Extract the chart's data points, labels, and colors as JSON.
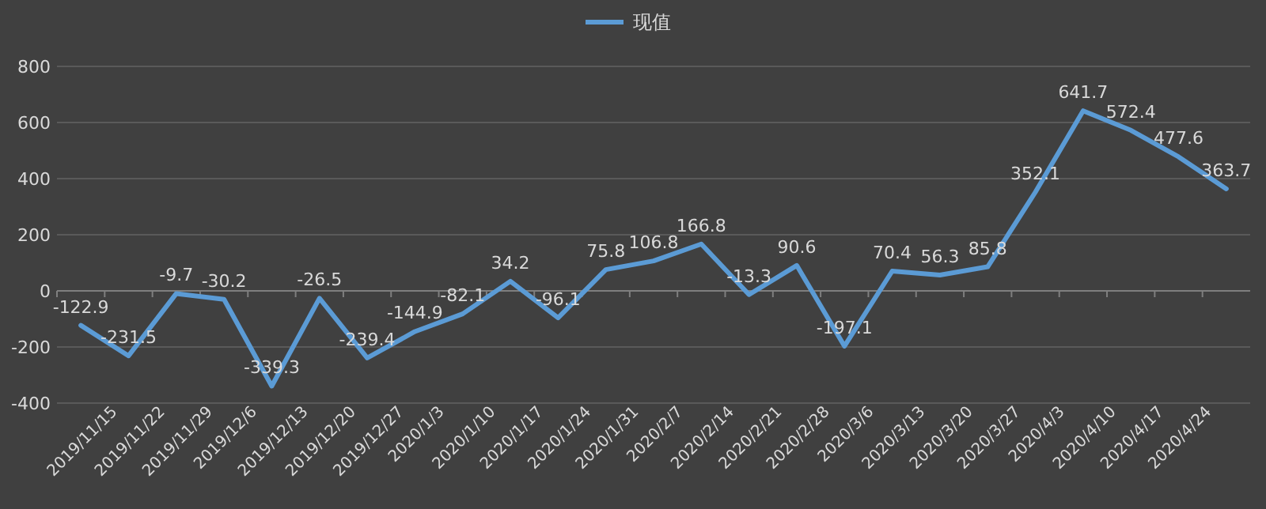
{
  "chart_data": {
    "type": "line",
    "categories": [
      "2019/11/15",
      "2019/11/22",
      "2019/11/29",
      "2019/12/6",
      "2019/12/13",
      "2019/12/20",
      "2019/12/27",
      "2020/1/3",
      "2020/1/10",
      "2020/1/17",
      "2020/1/24",
      "2020/1/31",
      "2020/2/7",
      "2020/2/14",
      "2020/2/21",
      "2020/2/28",
      "2020/3/6",
      "2020/3/13",
      "2020/3/20",
      "2020/3/27",
      "2020/4/3",
      "2020/4/10",
      "2020/4/17",
      "2020/4/24",
      null
    ],
    "series": [
      {
        "name": "现值",
        "color": "#5b9bd5",
        "values": [
          -122.9,
          -231.5,
          -9.7,
          -30.2,
          -339.3,
          -26.5,
          -239.4,
          -144.9,
          -82.1,
          34.2,
          -96.1,
          75.8,
          106.8,
          166.8,
          -13.3,
          90.6,
          -197.1,
          70.4,
          56.3,
          85.8,
          352.1,
          641.7,
          572.4,
          477.6,
          363.7
        ]
      }
    ],
    "ylim": [
      -400,
      800
    ],
    "yticks": [
      -400,
      -200,
      0,
      200,
      400,
      600,
      800
    ],
    "grid": "y",
    "legend": "top",
    "data_labels": true
  }
}
